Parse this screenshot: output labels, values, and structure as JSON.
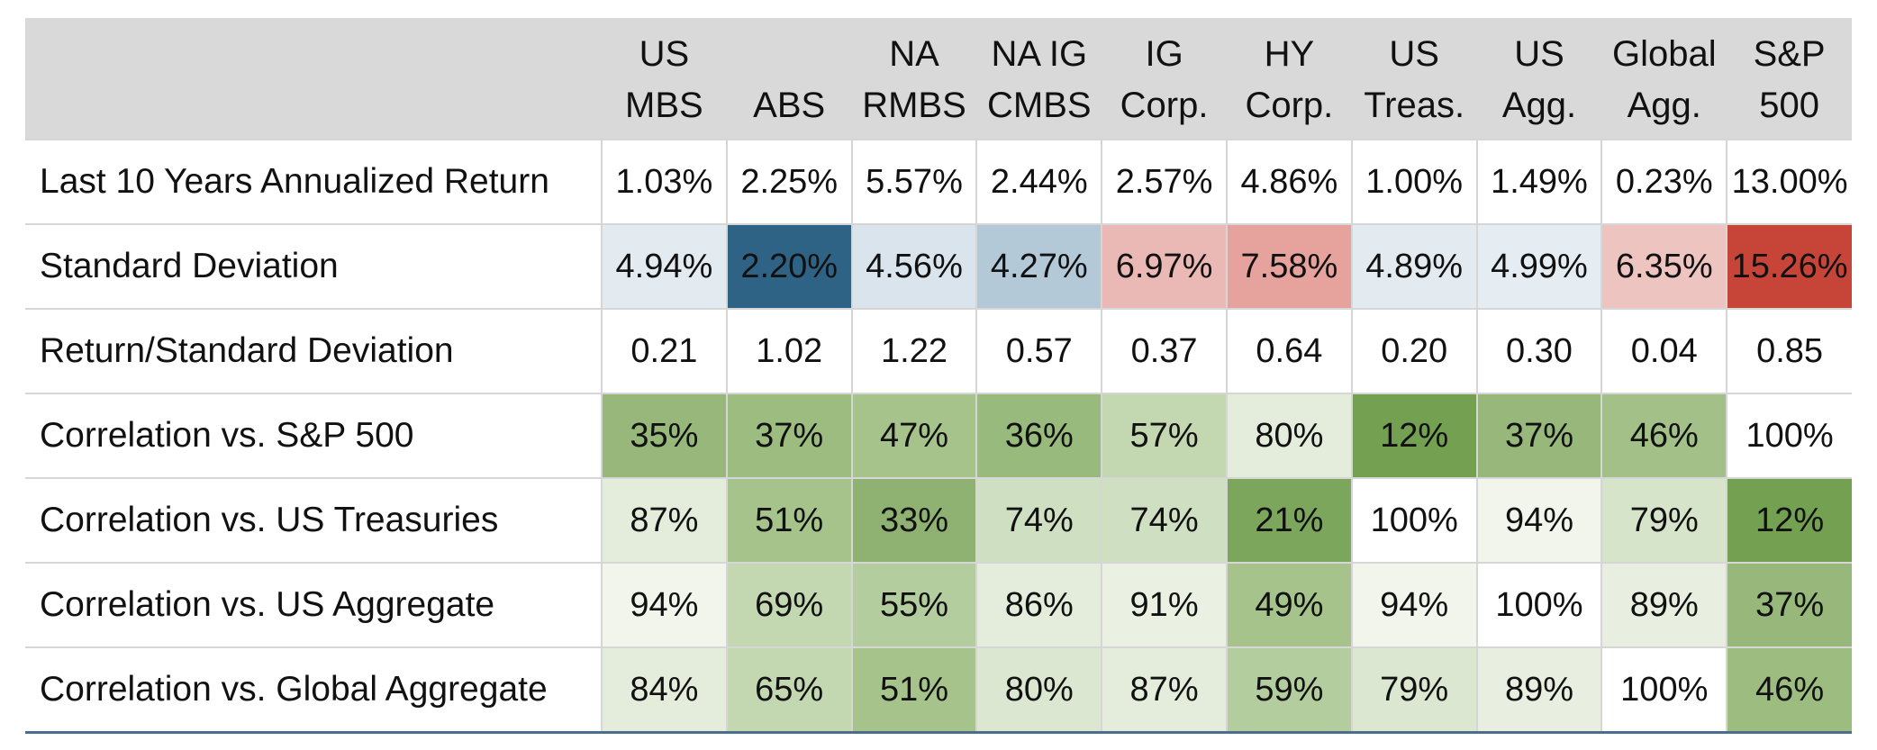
{
  "columns": [
    {
      "line1": "US",
      "line2": "MBS"
    },
    {
      "line1": "",
      "line2": "ABS"
    },
    {
      "line1": "NA",
      "line2": "RMBS"
    },
    {
      "line1": "NA IG",
      "line2": "CMBS"
    },
    {
      "line1": "IG",
      "line2": "Corp."
    },
    {
      "line1": "HY",
      "line2": "Corp."
    },
    {
      "line1": "US",
      "line2": "Treas."
    },
    {
      "line1": "US",
      "line2": "Agg."
    },
    {
      "line1": "Global",
      "line2": "Agg."
    },
    {
      "line1": "S&P",
      "line2": "500"
    }
  ],
  "rows": [
    {
      "label": "Last 10 Years Annualized Return",
      "cells": [
        {
          "text": "1.03%",
          "bg": "#ffffff"
        },
        {
          "text": "2.25%",
          "bg": "#ffffff"
        },
        {
          "text": "5.57%",
          "bg": "#ffffff"
        },
        {
          "text": "2.44%",
          "bg": "#ffffff"
        },
        {
          "text": "2.57%",
          "bg": "#ffffff"
        },
        {
          "text": "4.86%",
          "bg": "#ffffff"
        },
        {
          "text": "1.00%",
          "bg": "#ffffff"
        },
        {
          "text": "1.49%",
          "bg": "#ffffff"
        },
        {
          "text": "0.23%",
          "bg": "#ffffff"
        },
        {
          "text": "13.00%",
          "bg": "#ffffff"
        }
      ]
    },
    {
      "label": "Standard Deviation",
      "cells": [
        {
          "text": "4.94%",
          "bg": "#e3ebf1"
        },
        {
          "text": "2.20%",
          "bg": "#2f6385"
        },
        {
          "text": "4.56%",
          "bg": "#d9e4ec"
        },
        {
          "text": "4.27%",
          "bg": "#b3c9d8"
        },
        {
          "text": "6.97%",
          "bg": "#ebb9b5"
        },
        {
          "text": "7.58%",
          "bg": "#e6a29c"
        },
        {
          "text": "4.89%",
          "bg": "#e3ebf1"
        },
        {
          "text": "4.99%",
          "bg": "#e6edf2"
        },
        {
          "text": "6.35%",
          "bg": "#eec4c0"
        },
        {
          "text": "15.26%",
          "bg": "#c64538"
        }
      ]
    },
    {
      "label": "Return/Standard Deviation",
      "cells": [
        {
          "text": "0.21",
          "bg": "#ffffff"
        },
        {
          "text": "1.02",
          "bg": "#ffffff"
        },
        {
          "text": "1.22",
          "bg": "#ffffff"
        },
        {
          "text": "0.57",
          "bg": "#ffffff"
        },
        {
          "text": "0.37",
          "bg": "#ffffff"
        },
        {
          "text": "0.64",
          "bg": "#ffffff"
        },
        {
          "text": "0.20",
          "bg": "#ffffff"
        },
        {
          "text": "0.30",
          "bg": "#ffffff"
        },
        {
          "text": "0.04",
          "bg": "#ffffff"
        },
        {
          "text": "0.85",
          "bg": "#ffffff"
        }
      ]
    },
    {
      "label": "Correlation vs. S&P 500",
      "cells": [
        {
          "text": "35%",
          "bg": "#97b87a"
        },
        {
          "text": "37%",
          "bg": "#9cbc80"
        },
        {
          "text": "47%",
          "bg": "#a6c38c"
        },
        {
          "text": "36%",
          "bg": "#99ba7d"
        },
        {
          "text": "57%",
          "bg": "#c3d7b1"
        },
        {
          "text": "80%",
          "bg": "#e4ecdb"
        },
        {
          "text": "12%",
          "bg": "#74a052"
        },
        {
          "text": "37%",
          "bg": "#97b87a"
        },
        {
          "text": "46%",
          "bg": "#a2c088"
        },
        {
          "text": "100%",
          "bg": "#ffffff"
        }
      ]
    },
    {
      "label": "Correlation vs. US Treasuries",
      "cells": [
        {
          "text": "87%",
          "bg": "#e4ecdb"
        },
        {
          "text": "51%",
          "bg": "#a6c38c"
        },
        {
          "text": "33%",
          "bg": "#8fb272"
        },
        {
          "text": "74%",
          "bg": "#cfdfc2"
        },
        {
          "text": "74%",
          "bg": "#cfdfc2"
        },
        {
          "text": "21%",
          "bg": "#7ca65b"
        },
        {
          "text": "100%",
          "bg": "#ffffff"
        },
        {
          "text": "94%",
          "bg": "#f1f5ec"
        },
        {
          "text": "79%",
          "bg": "#d6e4ca"
        },
        {
          "text": "12%",
          "bg": "#74a052"
        }
      ]
    },
    {
      "label": "Correlation vs. US Aggregate",
      "cells": [
        {
          "text": "94%",
          "bg": "#f1f5ec"
        },
        {
          "text": "69%",
          "bg": "#c3d7b1"
        },
        {
          "text": "55%",
          "bg": "#b4cd9e"
        },
        {
          "text": "86%",
          "bg": "#e4ecdb"
        },
        {
          "text": "91%",
          "bg": "#eaf1e3"
        },
        {
          "text": "49%",
          "bg": "#a6c38c"
        },
        {
          "text": "94%",
          "bg": "#f1f5ec"
        },
        {
          "text": "100%",
          "bg": "#ffffff"
        },
        {
          "text": "89%",
          "bg": "#e8efe0"
        },
        {
          "text": "37%",
          "bg": "#97b87a"
        }
      ]
    },
    {
      "label": "Correlation vs. Global Aggregate",
      "cells": [
        {
          "text": "84%",
          "bg": "#e4ecdb"
        },
        {
          "text": "65%",
          "bg": "#c3d7b1"
        },
        {
          "text": "51%",
          "bg": "#a6c38c"
        },
        {
          "text": "80%",
          "bg": "#dbe7d0"
        },
        {
          "text": "87%",
          "bg": "#e4ecdb"
        },
        {
          "text": "59%",
          "bg": "#b4cd9e"
        },
        {
          "text": "79%",
          "bg": "#dbe7d0"
        },
        {
          "text": "89%",
          "bg": "#e8efe0"
        },
        {
          "text": "100%",
          "bg": "#ffffff"
        },
        {
          "text": "46%",
          "bg": "#9cbc80"
        }
      ]
    }
  ],
  "chart_data": {
    "type": "table",
    "columns": [
      "US MBS",
      "ABS",
      "NA RMBS",
      "NA IG CMBS",
      "IG Corp.",
      "HY Corp.",
      "US Treas.",
      "US Agg.",
      "Global Agg.",
      "S&P 500"
    ],
    "rows": [
      {
        "label": "Last 10 Years Annualized Return",
        "values": [
          1.03,
          2.25,
          5.57,
          2.44,
          2.57,
          4.86,
          1.0,
          1.49,
          0.23,
          13.0
        ],
        "unit": "%"
      },
      {
        "label": "Standard Deviation",
        "values": [
          4.94,
          2.2,
          4.56,
          4.27,
          6.97,
          7.58,
          4.89,
          4.99,
          6.35,
          15.26
        ],
        "unit": "%"
      },
      {
        "label": "Return/Standard Deviation",
        "values": [
          0.21,
          1.02,
          1.22,
          0.57,
          0.37,
          0.64,
          0.2,
          0.3,
          0.04,
          0.85
        ]
      },
      {
        "label": "Correlation vs. S&P 500",
        "values": [
          35,
          37,
          47,
          36,
          57,
          80,
          12,
          37,
          46,
          100
        ],
        "unit": "%"
      },
      {
        "label": "Correlation vs. US Treasuries",
        "values": [
          87,
          51,
          33,
          74,
          74,
          21,
          100,
          94,
          79,
          12
        ],
        "unit": "%"
      },
      {
        "label": "Correlation vs. US Aggregate",
        "values": [
          94,
          69,
          55,
          86,
          91,
          49,
          94,
          100,
          89,
          37
        ],
        "unit": "%"
      },
      {
        "label": "Correlation vs. Global Aggregate",
        "values": [
          84,
          65,
          51,
          80,
          87,
          59,
          79,
          89,
          100,
          46
        ],
        "unit": "%"
      }
    ],
    "title": "",
    "heatmap_colors": {
      "std_low": "#2f6385",
      "std_high": "#c64538",
      "corr_low": "#74a052",
      "corr_high": "#ffffff",
      "header_bg": "#d9d9d9",
      "bottom_rule": "#4a6f8c"
    }
  }
}
